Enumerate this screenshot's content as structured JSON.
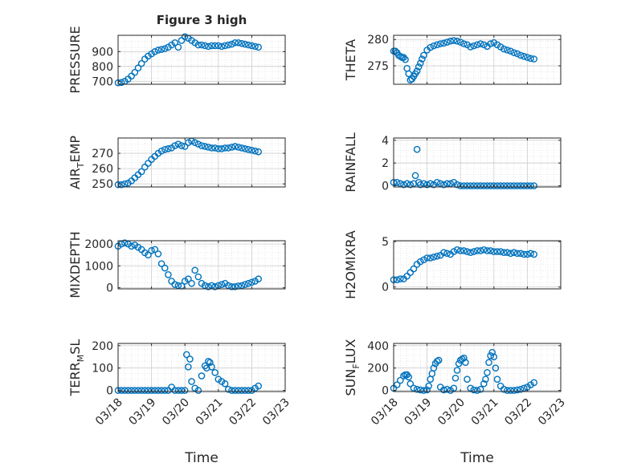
{
  "figure": {
    "title": "Figure 3 high",
    "xlabel": "Time",
    "x_tick_labels": [
      "03/18",
      "03/19",
      "03/20",
      "03/21",
      "03/22",
      "03/23"
    ],
    "marker_color": "#0072BD",
    "axis_color": "#262626",
    "grid_color": "#d8d8d8"
  },
  "chart_data": [
    {
      "type": "scatter",
      "ylabel": "PRESSURE",
      "ylabel_sub": "",
      "yticks": [
        700,
        800,
        900
      ],
      "ylim": [
        680,
        1010
      ],
      "xlim": [
        0,
        5
      ],
      "grid": true,
      "x": [
        0.0,
        0.1,
        0.2,
        0.3,
        0.4,
        0.5,
        0.6,
        0.7,
        0.8,
        0.9,
        1.0,
        1.1,
        1.2,
        1.3,
        1.4,
        1.5,
        1.6,
        1.7,
        1.8,
        1.9,
        2.0,
        2.1,
        2.2,
        2.3,
        2.4,
        2.5,
        2.6,
        2.7,
        2.8,
        2.9,
        3.0,
        3.1,
        3.2,
        3.3,
        3.4,
        3.5,
        3.6,
        3.7,
        3.8,
        3.9,
        4.0,
        4.1,
        4.2
      ],
      "y": [
        690,
        692,
        700,
        715,
        735,
        760,
        790,
        820,
        850,
        870,
        885,
        900,
        910,
        915,
        920,
        930,
        945,
        960,
        930,
        975,
        1000,
        990,
        975,
        960,
        945,
        945,
        940,
        935,
        940,
        940,
        940,
        935,
        940,
        945,
        950,
        960,
        960,
        955,
        950,
        945,
        940,
        935,
        930
      ]
    },
    {
      "type": "scatter",
      "ylabel": "THETA",
      "ylabel_sub": "",
      "yticks": [
        275,
        280
      ],
      "ylim": [
        271.5,
        280.8
      ],
      "xlim": [
        0,
        5
      ],
      "grid": true,
      "x": [
        0.0,
        0.05,
        0.1,
        0.15,
        0.2,
        0.25,
        0.3,
        0.35,
        0.4,
        0.45,
        0.5,
        0.55,
        0.6,
        0.65,
        0.7,
        0.75,
        0.8,
        0.85,
        0.9,
        1.0,
        1.1,
        1.2,
        1.3,
        1.4,
        1.5,
        1.6,
        1.7,
        1.8,
        1.9,
        2.0,
        2.1,
        2.2,
        2.3,
        2.4,
        2.5,
        2.6,
        2.7,
        2.8,
        2.9,
        3.0,
        3.1,
        3.2,
        3.3,
        3.4,
        3.5,
        3.6,
        3.7,
        3.8,
        3.9,
        4.0,
        4.1,
        4.2
      ],
      "y": [
        277.8,
        277.8,
        277.5,
        277.0,
        276.8,
        276.6,
        276.6,
        276.2,
        274.5,
        273.5,
        272.3,
        272.5,
        273.0,
        273.5,
        274.0,
        274.8,
        275.5,
        276.3,
        277.0,
        278.0,
        278.5,
        278.8,
        279.0,
        279.2,
        279.3,
        279.5,
        279.7,
        279.8,
        279.7,
        279.5,
        279.2,
        279.0,
        278.6,
        278.8,
        279.0,
        279.2,
        279.0,
        278.7,
        279.2,
        279.4,
        279.0,
        278.6,
        278.2,
        278.0,
        277.8,
        277.5,
        277.3,
        277.0,
        276.8,
        276.6,
        276.4,
        276.3
      ]
    },
    {
      "type": "scatter",
      "ylabel": "AIR",
      "ylabel_sub": "T",
      "ylabel_tail": "EMP",
      "yticks": [
        250,
        260,
        270
      ],
      "ylim": [
        248,
        280
      ],
      "xlim": [
        0,
        5
      ],
      "grid": true,
      "x": [
        0.0,
        0.1,
        0.2,
        0.3,
        0.4,
        0.5,
        0.6,
        0.7,
        0.8,
        0.9,
        1.0,
        1.1,
        1.2,
        1.3,
        1.4,
        1.5,
        1.6,
        1.7,
        1.8,
        1.9,
        2.0,
        2.1,
        2.2,
        2.3,
        2.4,
        2.5,
        2.6,
        2.7,
        2.8,
        2.9,
        3.0,
        3.1,
        3.2,
        3.3,
        3.4,
        3.5,
        3.6,
        3.7,
        3.8,
        3.9,
        4.0,
        4.1,
        4.2
      ],
      "y": [
        249.5,
        249.5,
        250,
        250.5,
        252,
        254,
        256,
        258,
        261,
        263.5,
        266,
        268,
        270,
        271.5,
        272.5,
        273,
        273.5,
        275,
        276,
        275,
        274.5,
        277,
        278,
        277,
        276,
        275,
        274.5,
        274,
        273.5,
        273.5,
        273,
        273,
        273.5,
        273.5,
        274,
        274.5,
        274,
        273.5,
        273,
        272.5,
        272,
        271.5,
        271
      ]
    },
    {
      "type": "scatter",
      "ylabel": "RAINFALL",
      "ylabel_sub": "",
      "yticks": [
        0,
        2,
        4
      ],
      "ylim": [
        -0.1,
        4.2
      ],
      "xlim": [
        0,
        5
      ],
      "grid": true,
      "x": [
        0.0,
        0.1,
        0.2,
        0.3,
        0.4,
        0.5,
        0.6,
        0.65,
        0.7,
        0.75,
        0.8,
        0.9,
        1.0,
        1.1,
        1.2,
        1.3,
        1.4,
        1.5,
        1.6,
        1.7,
        1.8,
        1.9,
        2.0,
        2.1,
        2.2,
        2.3,
        2.4,
        2.5,
        2.6,
        2.7,
        2.8,
        2.9,
        3.0,
        3.1,
        3.2,
        3.3,
        3.4,
        3.5,
        3.6,
        3.7,
        3.8,
        3.9,
        4.0,
        4.1,
        4.2
      ],
      "y": [
        0.3,
        0.3,
        0.2,
        0.1,
        0.2,
        0.1,
        0.2,
        0.9,
        3.2,
        0.3,
        0.1,
        0.2,
        0.1,
        0.2,
        0.1,
        0.3,
        0.2,
        0.1,
        0.2,
        0.2,
        0.3,
        0.1,
        0.0,
        0.0,
        0.0,
        0.0,
        0.0,
        0.0,
        0.0,
        0.0,
        0.0,
        0.0,
        0.0,
        0.0,
        0.0,
        0.0,
        0.0,
        0.0,
        0.0,
        0.0,
        0.0,
        0.0,
        0.0,
        0.0,
        0.0
      ]
    },
    {
      "type": "scatter",
      "ylabel": "MIXDEPTH",
      "ylabel_sub": "",
      "yticks": [
        0,
        1000,
        2000
      ],
      "ylim": [
        -50,
        2150
      ],
      "xlim": [
        0,
        5
      ],
      "grid": true,
      "x": [
        0.0,
        0.1,
        0.2,
        0.3,
        0.4,
        0.5,
        0.6,
        0.7,
        0.8,
        0.9,
        1.0,
        1.1,
        1.2,
        1.3,
        1.4,
        1.5,
        1.6,
        1.7,
        1.8,
        1.9,
        2.0,
        2.1,
        2.2,
        2.3,
        2.4,
        2.5,
        2.6,
        2.7,
        2.8,
        2.9,
        3.0,
        3.1,
        3.2,
        3.3,
        3.4,
        3.5,
        3.6,
        3.7,
        3.8,
        3.9,
        4.0,
        4.1,
        4.2
      ],
      "y": [
        1900,
        2000,
        2050,
        2000,
        1900,
        1950,
        1850,
        1750,
        1600,
        1500,
        1700,
        1750,
        1550,
        1100,
        900,
        600,
        300,
        150,
        100,
        80,
        300,
        400,
        200,
        800,
        500,
        200,
        100,
        50,
        100,
        50,
        100,
        150,
        200,
        100,
        50,
        50,
        80,
        100,
        150,
        200,
        250,
        300,
        400
      ]
    },
    {
      "type": "scatter",
      "ylabel": "H2OMIXRA",
      "ylabel_sub": "",
      "yticks": [
        0,
        5
      ],
      "ylim": [
        -0.2,
        5.1
      ],
      "xlim": [
        0,
        5
      ],
      "grid": true,
      "x": [
        0.0,
        0.1,
        0.2,
        0.3,
        0.4,
        0.5,
        0.6,
        0.7,
        0.8,
        0.9,
        1.0,
        1.1,
        1.2,
        1.3,
        1.4,
        1.5,
        1.6,
        1.7,
        1.8,
        1.9,
        2.0,
        2.1,
        2.2,
        2.3,
        2.4,
        2.5,
        2.6,
        2.7,
        2.8,
        2.9,
        3.0,
        3.1,
        3.2,
        3.3,
        3.4,
        3.5,
        3.6,
        3.7,
        3.8,
        3.9,
        4.0,
        4.1,
        4.2
      ],
      "y": [
        0.8,
        0.8,
        0.9,
        0.9,
        1.2,
        1.6,
        2.0,
        2.5,
        2.8,
        3.0,
        3.2,
        3.2,
        3.3,
        3.4,
        3.5,
        3.8,
        3.7,
        3.6,
        3.9,
        4.1,
        4.0,
        4.0,
        3.9,
        3.8,
        3.9,
        4.0,
        4.0,
        4.1,
        4.0,
        4.0,
        3.9,
        3.9,
        3.9,
        3.8,
        3.8,
        3.7,
        3.8,
        3.7,
        3.7,
        3.6,
        3.6,
        3.7,
        3.6
      ]
    },
    {
      "type": "scatter",
      "ylabel": "TERR",
      "ylabel_sub": "M",
      "ylabel_tail": "SL",
      "yticks": [
        0,
        100,
        200
      ],
      "ylim": [
        -5,
        210
      ],
      "xlim": [
        0,
        5
      ],
      "grid": true,
      "x": [
        0.0,
        0.1,
        0.2,
        0.3,
        0.4,
        0.5,
        0.6,
        0.7,
        0.8,
        0.9,
        1.0,
        1.1,
        1.2,
        1.3,
        1.4,
        1.5,
        1.6,
        1.7,
        1.8,
        1.9,
        2.0,
        2.05,
        2.1,
        2.15,
        2.2,
        2.3,
        2.4,
        2.5,
        2.6,
        2.65,
        2.7,
        2.75,
        2.8,
        2.9,
        3.0,
        3.1,
        3.2,
        3.3,
        3.4,
        3.5,
        3.6,
        3.7,
        3.8,
        3.9,
        4.0,
        4.1,
        4.2
      ],
      "y": [
        0,
        0,
        0,
        0,
        0,
        0,
        0,
        0,
        0,
        0,
        0,
        0,
        0,
        0,
        0,
        0,
        15,
        0,
        0,
        0,
        0,
        160,
        105,
        140,
        40,
        10,
        0,
        65,
        110,
        100,
        130,
        125,
        105,
        80,
        50,
        40,
        30,
        5,
        0,
        0,
        0,
        0,
        0,
        0,
        0,
        10,
        20
      ]
    },
    {
      "type": "scatter",
      "ylabel": "SUN",
      "ylabel_sub": "F",
      "ylabel_tail": "LUX",
      "yticks": [
        0,
        200,
        400
      ],
      "ylim": [
        -10,
        420
      ],
      "xlim": [
        0,
        5
      ],
      "grid": true,
      "x": [
        0.0,
        0.1,
        0.2,
        0.3,
        0.35,
        0.4,
        0.45,
        0.5,
        0.6,
        0.7,
        0.8,
        0.9,
        1.0,
        1.05,
        1.1,
        1.15,
        1.2,
        1.25,
        1.3,
        1.35,
        1.4,
        1.5,
        1.6,
        1.7,
        1.8,
        1.85,
        1.9,
        1.95,
        2.0,
        2.05,
        2.1,
        2.15,
        2.2,
        2.3,
        2.4,
        2.5,
        2.6,
        2.7,
        2.75,
        2.8,
        2.85,
        2.9,
        2.95,
        3.0,
        3.05,
        3.1,
        3.2,
        3.3,
        3.4,
        3.5,
        3.6,
        3.7,
        3.8,
        3.9,
        4.0,
        4.1,
        4.2
      ],
      "y": [
        20,
        50,
        90,
        130,
        140,
        140,
        120,
        60,
        20,
        10,
        5,
        0,
        5,
        40,
        100,
        150,
        200,
        240,
        260,
        270,
        30,
        5,
        10,
        0,
        20,
        110,
        180,
        240,
        270,
        280,
        290,
        250,
        100,
        20,
        5,
        0,
        10,
        60,
        100,
        160,
        250,
        310,
        340,
        300,
        200,
        100,
        40,
        10,
        0,
        0,
        0,
        5,
        10,
        20,
        30,
        50,
        70
      ]
    }
  ]
}
